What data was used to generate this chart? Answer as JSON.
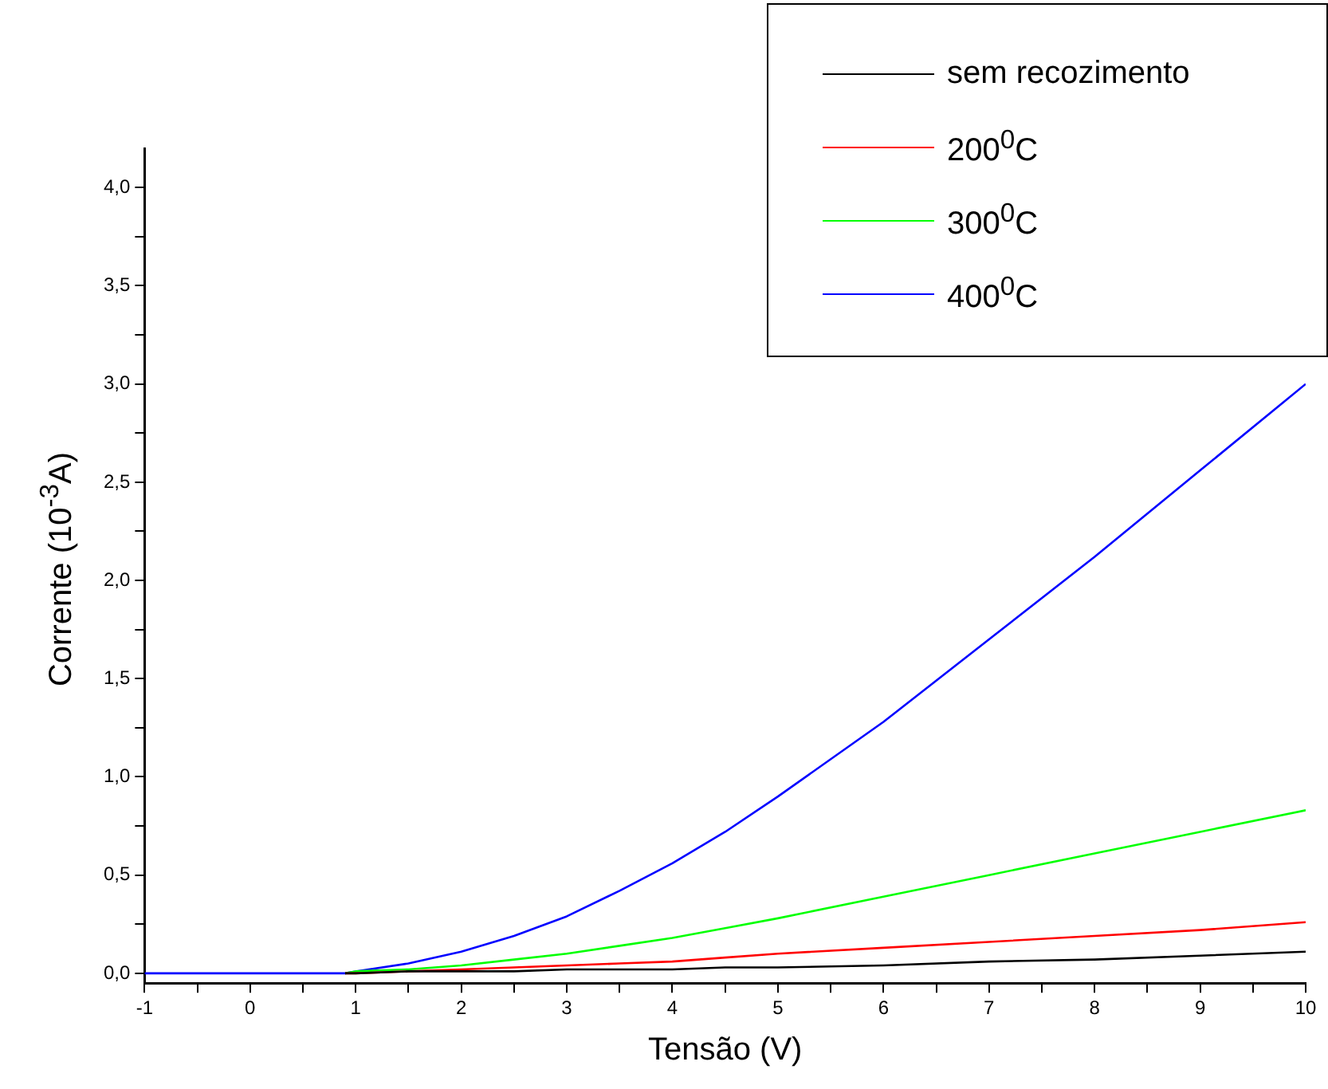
{
  "chart_data": {
    "type": "line",
    "xlabel": "Tensão (V)",
    "ylabel": "Corrente (10$^{-3}$A)",
    "x": [
      -1,
      0,
      0.9,
      1,
      1.5,
      2,
      2.5,
      3,
      3.5,
      4,
      4.5,
      5,
      6,
      7,
      8,
      9,
      10
    ],
    "series": [
      {
        "name": "sem recozimento",
        "color": "#000000",
        "values": [
          null,
          null,
          0,
          0,
          0.01,
          0.01,
          0.01,
          0.02,
          0.02,
          0.02,
          0.03,
          0.03,
          0.04,
          0.06,
          0.07,
          0.09,
          0.11
        ]
      },
      {
        "name": "200$^{0}$C",
        "color": "#ff0000",
        "values": [
          null,
          null,
          0,
          0,
          0.01,
          0.02,
          0.03,
          0.04,
          0.05,
          0.06,
          0.08,
          0.1,
          0.13,
          0.16,
          0.19,
          0.22,
          0.26
        ]
      },
      {
        "name": "300$^{0}$C",
        "color": "#00ff00",
        "values": [
          null,
          null,
          0,
          0.01,
          0.02,
          0.04,
          0.07,
          0.1,
          0.14,
          0.18,
          0.23,
          0.28,
          0.39,
          0.5,
          0.61,
          0.72,
          0.83
        ]
      },
      {
        "name": "400$^{0}$C",
        "color": "#0000ff",
        "values": [
          0,
          0,
          0,
          0.01,
          0.05,
          0.11,
          0.19,
          0.29,
          0.42,
          0.56,
          0.72,
          0.9,
          1.28,
          1.7,
          2.12,
          2.56,
          3.0
        ]
      }
    ],
    "xlim": [
      -1,
      10
    ],
    "ylim": [
      -0.05,
      4.2
    ],
    "xticks": [
      -1,
      {
        "value": -0.5,
        "label": null
      },
      0,
      {
        "value": 0.5,
        "label": null
      },
      1,
      {
        "value": 1.5,
        "label": null
      },
      2,
      {
        "value": 2.5,
        "label": null
      },
      3,
      {
        "value": 3.5,
        "label": null
      },
      4,
      {
        "value": 4.5,
        "label": null
      },
      5,
      {
        "value": 5.5,
        "label": null
      },
      6,
      {
        "value": 6.5,
        "label": null
      },
      7,
      {
        "value": 7.5,
        "label": null
      },
      8,
      {
        "value": 8.5,
        "label": null
      },
      9,
      {
        "value": 9.5,
        "label": null
      },
      10
    ],
    "yticks": [
      {
        "value": 0,
        "label": "0,0"
      },
      {
        "value": 0.25,
        "label": null
      },
      {
        "value": 0.5,
        "label": "0,5"
      },
      {
        "value": 0.75,
        "label": null
      },
      {
        "value": 1,
        "label": "1,0"
      },
      {
        "value": 1.25,
        "label": null
      },
      {
        "value": 1.5,
        "label": "1,5"
      },
      {
        "value": 1.75,
        "label": null
      },
      {
        "value": 2,
        "label": "2,0"
      },
      {
        "value": 2.25,
        "label": null
      },
      {
        "value": 2.5,
        "label": "2,5"
      },
      {
        "value": 2.75,
        "label": null
      },
      {
        "value": 3,
        "label": "3,0"
      },
      {
        "value": 3.25,
        "label": null
      },
      {
        "value": 3.5,
        "label": "3,5"
      },
      {
        "value": 3.75,
        "label": null
      },
      {
        "value": 4,
        "label": "4,0"
      }
    ],
    "grid": false,
    "legend": "top right",
    "marker": "none",
    "line_style": "solid"
  }
}
